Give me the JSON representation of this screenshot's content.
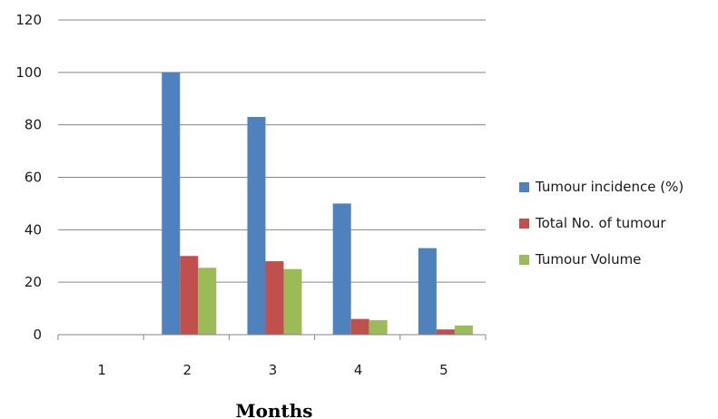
{
  "chart_data": {
    "type": "bar",
    "title": "",
    "xlabel": "Months",
    "ylabel": "",
    "categories": [
      "1",
      "2",
      "3",
      "4",
      "5"
    ],
    "ylim": [
      0,
      120
    ],
    "yticks": [
      "0",
      "20",
      "40",
      "60",
      "80",
      "100",
      "120"
    ],
    "grid": true,
    "legend": "right",
    "series": [
      {
        "name": "Tumour incidence (%)",
        "color": "#4F81BD",
        "values": [
          0,
          100,
          83,
          50,
          33
        ]
      },
      {
        "name": "Total No. of tumour",
        "color": "#C0504D",
        "values": [
          0,
          30,
          28,
          6,
          2
        ]
      },
      {
        "name": "Tumour Volume",
        "color": "#9BBB59",
        "values": [
          0,
          25.5,
          25,
          5.5,
          3.5
        ]
      }
    ]
  }
}
